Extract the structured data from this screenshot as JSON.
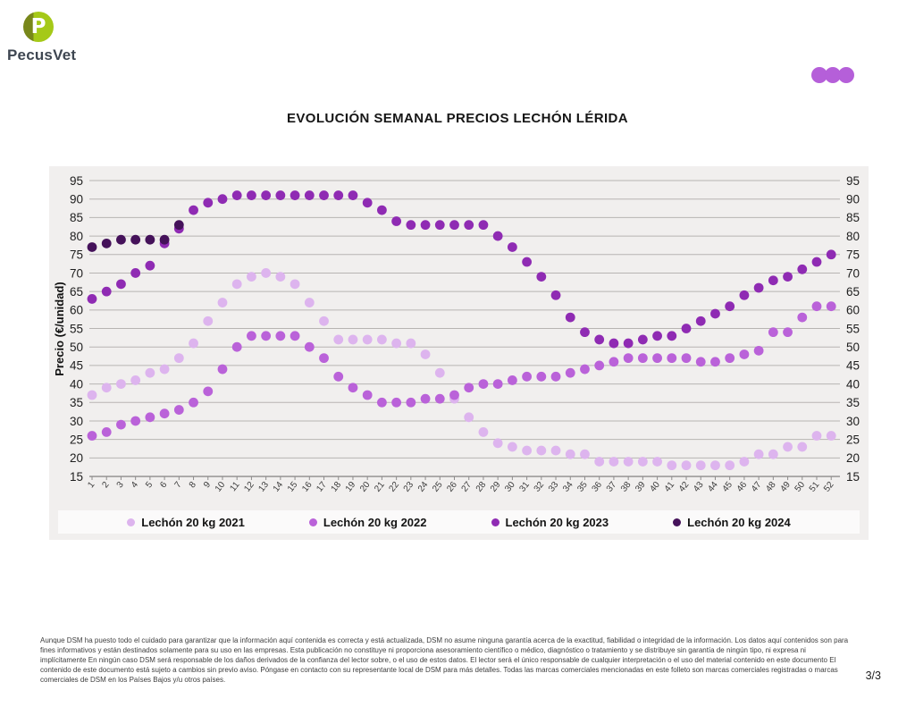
{
  "logo": {
    "text": "PecusVet",
    "icon_letter": "P"
  },
  "brand": {
    "logo_green": "#a5c918",
    "logo_dark_green": "#78871a",
    "logo_text_color": "#3e4651",
    "dots_color": "#b55fd9"
  },
  "title": "EVOLUCIÓN SEMANAL PRECIOS LECHÓN LÉRIDA",
  "chart_data": {
    "type": "scatter",
    "title": "EVOLUCIÓN SEMANAL PRECIOS LECHÓN LÉRIDA",
    "xlabel": "",
    "ylabel": "Precio (€/unidad)",
    "ylim": [
      15,
      95
    ],
    "grid": true,
    "legend_position": "bottom",
    "y_ticks": [
      95,
      90,
      85,
      80,
      75,
      70,
      65,
      60,
      55,
      50,
      45,
      40,
      35,
      30,
      25,
      20,
      15
    ],
    "x_weeks": [
      1,
      2,
      3,
      4,
      5,
      6,
      7,
      8,
      9,
      10,
      11,
      12,
      13,
      14,
      15,
      16,
      17,
      18,
      19,
      20,
      21,
      22,
      23,
      24,
      25,
      26,
      27,
      28,
      29,
      30,
      31,
      32,
      33,
      34,
      35,
      36,
      37,
      38,
      39,
      40,
      41,
      42,
      43,
      44,
      45,
      46,
      47,
      48,
      49,
      50,
      51,
      52
    ],
    "series": [
      {
        "name": "Lechón 20 kg 2021",
        "color": "#ddb4ee",
        "values": [
          37,
          39,
          40,
          41,
          43,
          44,
          47,
          51,
          57,
          62,
          67,
          69,
          70,
          69,
          67,
          62,
          57,
          52,
          52,
          52,
          52,
          51,
          51,
          48,
          43,
          36,
          31,
          27,
          24,
          23,
          22,
          22,
          22,
          21,
          21,
          19,
          19,
          19,
          19,
          19,
          18,
          18,
          18,
          18,
          18,
          19,
          21,
          21,
          23,
          23,
          26,
          26
        ]
      },
      {
        "name": "Lechón 20 kg 2022",
        "color": "#ba62d9",
        "values": [
          26,
          27,
          29,
          30,
          31,
          32,
          33,
          35,
          38,
          44,
          50,
          53,
          53,
          53,
          53,
          50,
          47,
          42,
          39,
          37,
          35,
          35,
          35,
          36,
          36,
          37,
          39,
          40,
          40,
          41,
          42,
          42,
          42,
          43,
          44,
          45,
          46,
          47,
          47,
          47,
          47,
          47,
          46,
          46,
          47,
          48,
          49,
          54,
          54,
          58,
          61,
          61
        ]
      },
      {
        "name": "Lechón 20 kg 2023",
        "color": "#8f2bb3",
        "values": [
          63,
          65,
          67,
          70,
          72,
          78,
          82,
          87,
          89,
          90,
          91,
          91,
          91,
          91,
          91,
          91,
          91,
          91,
          91,
          89,
          87,
          84,
          83,
          83,
          83,
          83,
          83,
          83,
          80,
          77,
          73,
          69,
          64,
          58,
          54,
          52,
          51,
          51,
          52,
          53,
          53,
          55,
          57,
          59,
          61,
          64,
          66,
          68,
          69,
          71,
          73,
          75
        ]
      },
      {
        "name": "Lechón 20 kg 2024",
        "color": "#45125a",
        "values": [
          77,
          78,
          79,
          79,
          79,
          79,
          83,
          null,
          null,
          null,
          null,
          null,
          null,
          null,
          null,
          null,
          null,
          null,
          null,
          null,
          null,
          null,
          null,
          null,
          null,
          null,
          null,
          null,
          null,
          null,
          null,
          null,
          null,
          null,
          null,
          null,
          null,
          null,
          null,
          null,
          null,
          null,
          null,
          null,
          null,
          null,
          null,
          null,
          null,
          null,
          null,
          null
        ]
      }
    ]
  },
  "footer": {
    "disclaimer": "Aunque DSM ha puesto todo el cuidado para garantizar que la información aquí contenida es correcta y está actualizada, DSM no asume ninguna garantía acerca de la exactitud, fiabilidad o integridad de la información. Los datos aquí contenidos son para fines informativos y están destinados solamente para su uso en las empresas. Esta publicación no constituye ni proporciona asesoramiento científico o médico, diagnóstico o tratamiento y se distribuye sin garantía de ningún tipo, ni expresa ni implícitamente En ningún caso DSM será responsable de los daños derivados de la confianza del lector sobre, o el uso de estos datos. El lector será el único responsable de cualquier interpretación o el uso del material contenido en este documento El contenido de este documento está sujeto a cambios sin previo aviso. Póngase en contacto con su representante local de DSM para más detalles. Todas las marcas comerciales mencionadas en este folleto son marcas comerciales registradas o marcas comerciales de DSM en los Países Bajos y/u otros países.",
    "page": "3/3"
  }
}
